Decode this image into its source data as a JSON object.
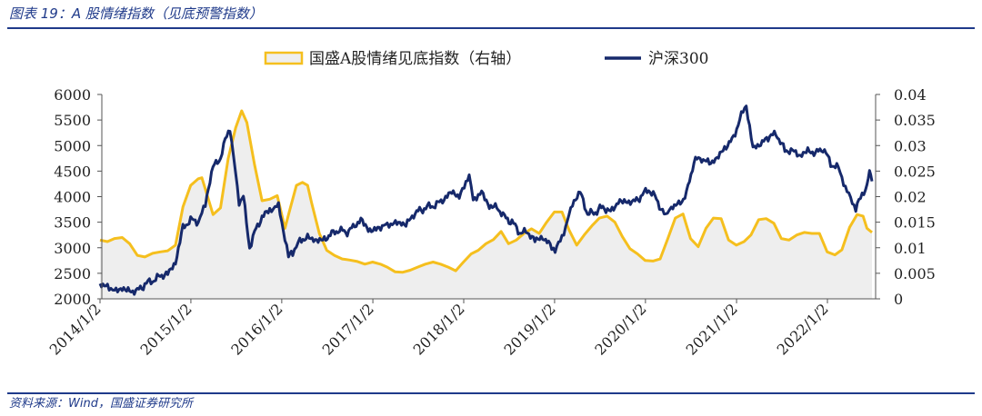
{
  "header": {
    "title": "图表 19：A 股情绪指数（见底预警指数）"
  },
  "footer": {
    "source": "资料来源：Wind，国盛证券研究所"
  },
  "chart_data": {
    "type": "line",
    "x_type": "date",
    "x_ticks": [
      "2014/1/2",
      "2015/1/2",
      "2016/1/2",
      "2017/1/2",
      "2018/1/2",
      "2019/1/2",
      "2020/1/2",
      "2021/1/2",
      "2022/1/2"
    ],
    "x_range": [
      "2014-01-02",
      "2022-06-30"
    ],
    "y_left": {
      "ticks": [
        "2000",
        "2500",
        "3000",
        "3500",
        "4000",
        "4500",
        "5000",
        "5500",
        "6000"
      ],
      "range": [
        2000,
        6000
      ]
    },
    "y_right": {
      "ticks": [
        "0",
        "0.005",
        "0.01",
        "0.015",
        "0.02",
        "0.025",
        "0.03",
        "0.035",
        "0.04"
      ],
      "range": [
        0,
        0.04
      ]
    },
    "legend_position": "top-center",
    "colors": {
      "sentiment_line": "#f5bf1e",
      "sentiment_fill": "#eeeeee",
      "csi300": "#16296b",
      "axis": "#555555"
    },
    "series": [
      {
        "name": "国盛A股情绪见底指数（右轴）",
        "kind": "area",
        "axis": "right",
        "points": [
          [
            "2014-01-02",
            0.0115
          ],
          [
            "2014-02-01",
            0.0112
          ],
          [
            "2014-03-01",
            0.0118
          ],
          [
            "2014-04-01",
            0.012
          ],
          [
            "2014-05-01",
            0.0108
          ],
          [
            "2014-06-01",
            0.0085
          ],
          [
            "2014-07-01",
            0.0082
          ],
          [
            "2014-08-01",
            0.0089
          ],
          [
            "2014-09-01",
            0.0092
          ],
          [
            "2014-10-01",
            0.0094
          ],
          [
            "2014-11-01",
            0.0105
          ],
          [
            "2014-12-01",
            0.018
          ],
          [
            "2015-01-01",
            0.0222
          ],
          [
            "2015-02-01",
            0.0235
          ],
          [
            "2015-02-15",
            0.0237
          ],
          [
            "2015-03-01",
            0.0215
          ],
          [
            "2015-04-01",
            0.0165
          ],
          [
            "2015-05-01",
            0.0178
          ],
          [
            "2015-06-01",
            0.0275
          ],
          [
            "2015-07-01",
            0.0335
          ],
          [
            "2015-07-25",
            0.0368
          ],
          [
            "2015-08-15",
            0.0345
          ],
          [
            "2015-09-15",
            0.0262
          ],
          [
            "2015-10-15",
            0.0192
          ],
          [
            "2015-11-15",
            0.0195
          ],
          [
            "2015-12-15",
            0.0202
          ],
          [
            "2016-01-15",
            0.0138
          ],
          [
            "2016-02-01",
            0.017
          ],
          [
            "2016-03-01",
            0.0222
          ],
          [
            "2016-03-25",
            0.0228
          ],
          [
            "2016-04-15",
            0.0222
          ],
          [
            "2016-05-01",
            0.0188
          ],
          [
            "2016-06-01",
            0.0128
          ],
          [
            "2016-07-01",
            0.0095
          ],
          [
            "2016-08-01",
            0.0085
          ],
          [
            "2016-09-01",
            0.0078
          ],
          [
            "2016-10-01",
            0.0076
          ],
          [
            "2016-11-01",
            0.0073
          ],
          [
            "2016-12-01",
            0.0068
          ],
          [
            "2017-01-01",
            0.0072
          ],
          [
            "2017-02-01",
            0.0068
          ],
          [
            "2017-03-01",
            0.0062
          ],
          [
            "2017-04-01",
            0.0053
          ],
          [
            "2017-05-01",
            0.0052
          ],
          [
            "2017-06-01",
            0.0056
          ],
          [
            "2017-07-01",
            0.0062
          ],
          [
            "2017-08-01",
            0.0068
          ],
          [
            "2017-09-01",
            0.0072
          ],
          [
            "2017-10-01",
            0.0068
          ],
          [
            "2017-11-01",
            0.0062
          ],
          [
            "2017-12-01",
            0.0055
          ],
          [
            "2018-01-01",
            0.0072
          ],
          [
            "2018-02-01",
            0.0088
          ],
          [
            "2018-03-01",
            0.0095
          ],
          [
            "2018-04-01",
            0.0108
          ],
          [
            "2018-05-01",
            0.0116
          ],
          [
            "2018-06-01",
            0.0132
          ],
          [
            "2018-07-01",
            0.0108
          ],
          [
            "2018-08-01",
            0.0115
          ],
          [
            "2018-09-01",
            0.0128
          ],
          [
            "2018-10-01",
            0.0137
          ],
          [
            "2018-11-01",
            0.0128
          ],
          [
            "2018-12-01",
            0.015
          ],
          [
            "2019-01-01",
            0.017
          ],
          [
            "2019-02-01",
            0.017
          ],
          [
            "2019-03-01",
            0.0135
          ],
          [
            "2019-04-01",
            0.0105
          ],
          [
            "2019-05-01",
            0.0125
          ],
          [
            "2019-06-01",
            0.0143
          ],
          [
            "2019-07-01",
            0.0158
          ],
          [
            "2019-08-01",
            0.0162
          ],
          [
            "2019-09-01",
            0.015
          ],
          [
            "2019-10-01",
            0.0122
          ],
          [
            "2019-11-01",
            0.0098
          ],
          [
            "2019-12-01",
            0.0088
          ],
          [
            "2020-01-01",
            0.0075
          ],
          [
            "2020-02-01",
            0.0074
          ],
          [
            "2020-03-01",
            0.0078
          ],
          [
            "2020-04-01",
            0.0118
          ],
          [
            "2020-05-01",
            0.0158
          ],
          [
            "2020-06-01",
            0.0166
          ],
          [
            "2020-07-01",
            0.0118
          ],
          [
            "2020-08-01",
            0.0102
          ],
          [
            "2020-09-01",
            0.0138
          ],
          [
            "2020-10-01",
            0.0158
          ],
          [
            "2020-11-01",
            0.0157
          ],
          [
            "2020-12-01",
            0.0115
          ],
          [
            "2021-01-01",
            0.0105
          ],
          [
            "2021-02-01",
            0.0112
          ],
          [
            "2021-03-01",
            0.0125
          ],
          [
            "2021-04-01",
            0.0155
          ],
          [
            "2021-05-01",
            0.0157
          ],
          [
            "2021-06-01",
            0.0148
          ],
          [
            "2021-07-01",
            0.0118
          ],
          [
            "2021-08-01",
            0.0115
          ],
          [
            "2021-09-01",
            0.0125
          ],
          [
            "2021-10-01",
            0.013
          ],
          [
            "2021-11-01",
            0.0128
          ],
          [
            "2021-12-01",
            0.0128
          ],
          [
            "2022-01-01",
            0.0092
          ],
          [
            "2022-02-01",
            0.0086
          ],
          [
            "2022-03-01",
            0.0096
          ],
          [
            "2022-04-01",
            0.014
          ],
          [
            "2022-05-01",
            0.0165
          ],
          [
            "2022-05-25",
            0.0162
          ],
          [
            "2022-06-10",
            0.0138
          ],
          [
            "2022-06-30",
            0.013
          ]
        ]
      },
      {
        "name": "沪深300",
        "kind": "line",
        "axis": "left",
        "points": [
          [
            "2014-01-02",
            2300
          ],
          [
            "2014-02-01",
            2220
          ],
          [
            "2014-03-01",
            2160
          ],
          [
            "2014-04-01",
            2200
          ],
          [
            "2014-05-01",
            2150
          ],
          [
            "2014-06-01",
            2160
          ],
          [
            "2014-07-01",
            2280
          ],
          [
            "2014-08-01",
            2360
          ],
          [
            "2014-09-01",
            2440
          ],
          [
            "2014-10-01",
            2500
          ],
          [
            "2014-11-01",
            2700
          ],
          [
            "2014-12-01",
            3400
          ],
          [
            "2015-01-01",
            3540
          ],
          [
            "2015-02-01",
            3520
          ],
          [
            "2015-03-01",
            3850
          ],
          [
            "2015-04-01",
            4600
          ],
          [
            "2015-05-01",
            4750
          ],
          [
            "2015-05-20",
            5100
          ],
          [
            "2015-06-08",
            5350
          ],
          [
            "2015-06-30",
            4500
          ],
          [
            "2015-07-15",
            3900
          ],
          [
            "2015-08-01",
            4000
          ],
          [
            "2015-08-26",
            3000
          ],
          [
            "2015-09-15",
            3300
          ],
          [
            "2015-10-15",
            3600
          ],
          [
            "2015-11-15",
            3750
          ],
          [
            "2015-12-20",
            3800
          ],
          [
            "2016-01-15",
            3200
          ],
          [
            "2016-01-29",
            2850
          ],
          [
            "2016-02-15",
            2900
          ],
          [
            "2016-03-15",
            3150
          ],
          [
            "2016-04-15",
            3200
          ],
          [
            "2016-05-15",
            3150
          ],
          [
            "2016-06-15",
            3150
          ],
          [
            "2016-07-15",
            3250
          ],
          [
            "2016-08-15",
            3350
          ],
          [
            "2016-09-15",
            3300
          ],
          [
            "2016-10-15",
            3400
          ],
          [
            "2016-11-15",
            3550
          ],
          [
            "2016-12-15",
            3350
          ],
          [
            "2017-01-15",
            3350
          ],
          [
            "2017-02-15",
            3450
          ],
          [
            "2017-03-15",
            3450
          ],
          [
            "2017-04-15",
            3500
          ],
          [
            "2017-05-15",
            3450
          ],
          [
            "2017-06-15",
            3650
          ],
          [
            "2017-07-15",
            3750
          ],
          [
            "2017-08-15",
            3800
          ],
          [
            "2017-09-15",
            3850
          ],
          [
            "2017-10-15",
            3950
          ],
          [
            "2017-11-15",
            4100
          ],
          [
            "2017-12-15",
            4000
          ],
          [
            "2018-01-24",
            4400
          ],
          [
            "2018-02-09",
            3900
          ],
          [
            "2018-03-15",
            4100
          ],
          [
            "2018-04-15",
            3800
          ],
          [
            "2018-05-15",
            3800
          ],
          [
            "2018-06-15",
            3600
          ],
          [
            "2018-07-15",
            3500
          ],
          [
            "2018-08-15",
            3300
          ],
          [
            "2018-09-15",
            3300
          ],
          [
            "2018-10-15",
            3150
          ],
          [
            "2018-11-15",
            3200
          ],
          [
            "2018-12-15",
            3050
          ],
          [
            "2019-01-04",
            2950
          ],
          [
            "2019-02-15",
            3400
          ],
          [
            "2019-03-15",
            3850
          ],
          [
            "2019-04-15",
            4100
          ],
          [
            "2019-05-15",
            3650
          ],
          [
            "2019-06-15",
            3700
          ],
          [
            "2019-07-15",
            3800
          ],
          [
            "2019-08-15",
            3700
          ],
          [
            "2019-09-15",
            3900
          ],
          [
            "2019-10-15",
            3900
          ],
          [
            "2019-11-15",
            3900
          ],
          [
            "2019-12-15",
            4000
          ],
          [
            "2020-01-15",
            4150
          ],
          [
            "2020-02-15",
            3950
          ],
          [
            "2020-03-23",
            3600
          ],
          [
            "2020-04-15",
            3800
          ],
          [
            "2020-05-15",
            3850
          ],
          [
            "2020-06-15",
            4050
          ],
          [
            "2020-07-15",
            4700
          ],
          [
            "2020-08-15",
            4750
          ],
          [
            "2020-09-15",
            4650
          ],
          [
            "2020-10-15",
            4750
          ],
          [
            "2020-11-15",
            4950
          ],
          [
            "2020-12-15",
            5100
          ],
          [
            "2021-01-15",
            5500
          ],
          [
            "2021-02-10",
            5800
          ],
          [
            "2021-03-09",
            4950
          ],
          [
            "2021-04-15",
            5050
          ],
          [
            "2021-05-15",
            5200
          ],
          [
            "2021-06-15",
            5200
          ],
          [
            "2021-07-15",
            4900
          ],
          [
            "2021-08-15",
            4900
          ],
          [
            "2021-09-15",
            4800
          ],
          [
            "2021-10-15",
            4900
          ],
          [
            "2021-11-15",
            4850
          ],
          [
            "2021-12-15",
            4950
          ],
          [
            "2022-01-15",
            4650
          ],
          [
            "2022-02-15",
            4550
          ],
          [
            "2022-03-15",
            4200
          ],
          [
            "2022-04-26",
            3780
          ],
          [
            "2022-05-15",
            3950
          ],
          [
            "2022-06-10",
            4250
          ],
          [
            "2022-06-20",
            4480
          ],
          [
            "2022-06-30",
            4300
          ]
        ]
      }
    ]
  }
}
